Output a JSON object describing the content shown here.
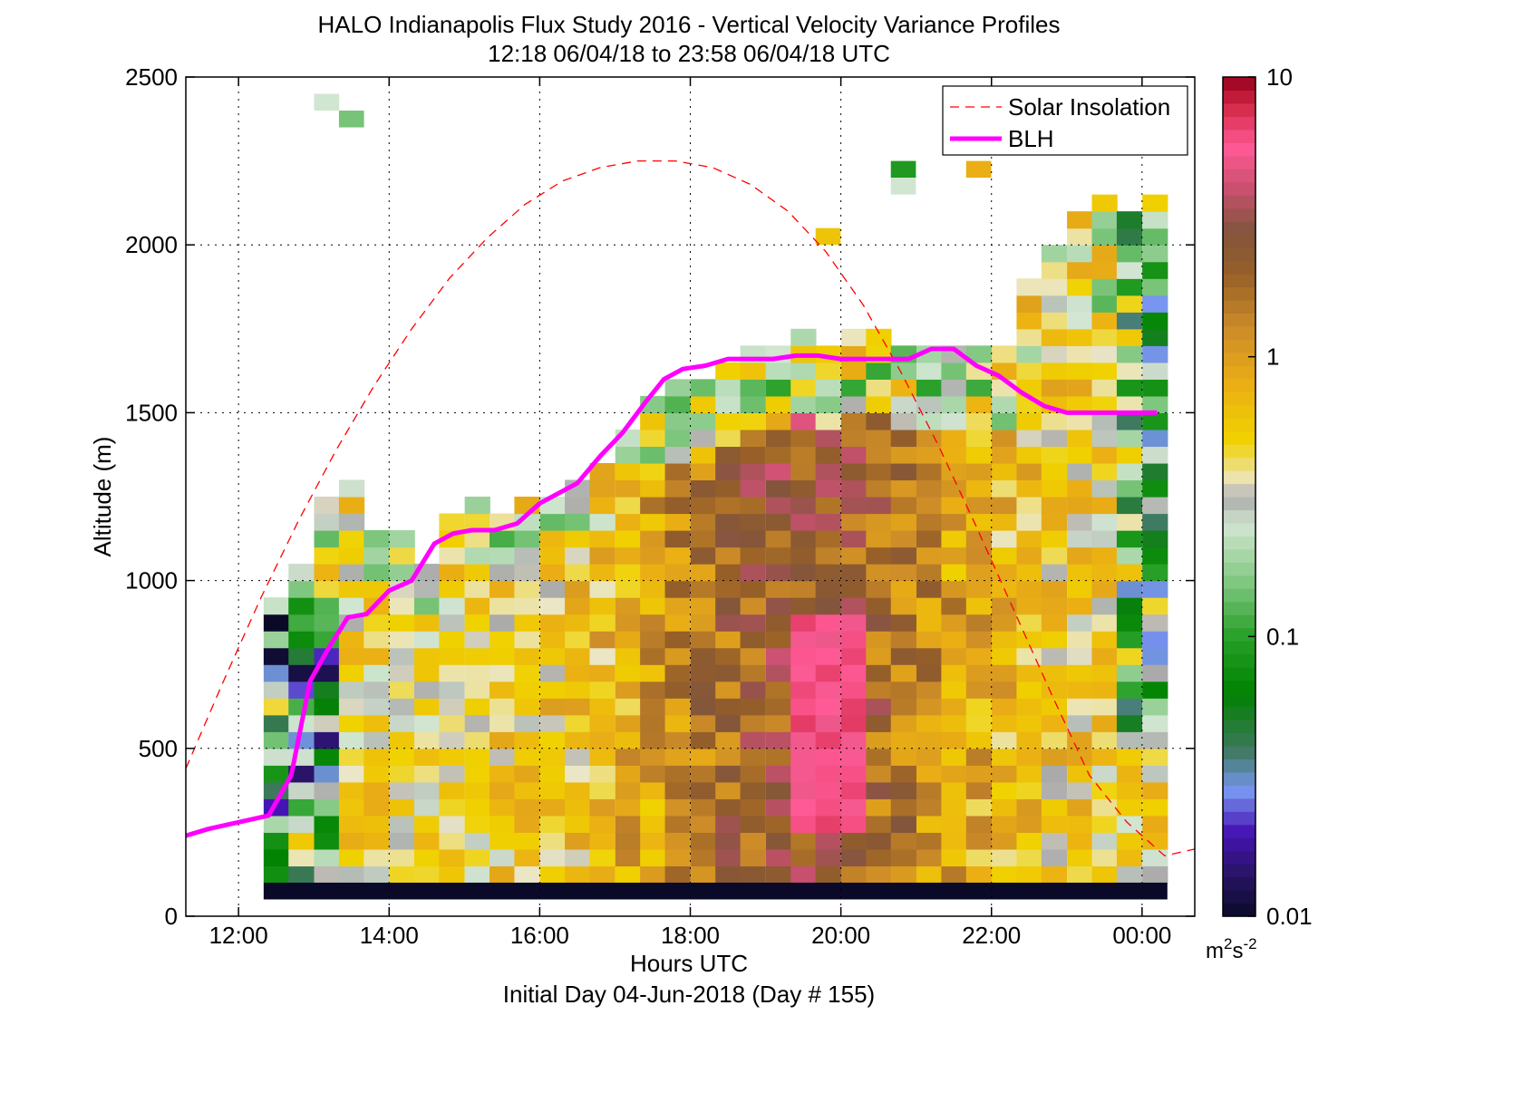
{
  "chart_data": {
    "type": "heatmap",
    "title": "HALO Indianapolis Flux Study 2016 - Vertical Velocity Variance Profiles",
    "subtitle": "12:18 06/04/18 to 23:58 06/04/18  UTC",
    "xlabel": "Hours UTC",
    "ylabel": "Altitude (m)",
    "footer": "Initial Day 04-Jun-2018 (Day # 155)",
    "xlim_hours": [
      11.3,
      24.7
    ],
    "ylim": [
      0,
      2500
    ],
    "x_ticks": [
      {
        "value": 12,
        "label": "12:00"
      },
      {
        "value": 14,
        "label": "14:00"
      },
      {
        "value": 16,
        "label": "16:00"
      },
      {
        "value": 18,
        "label": "18:00"
      },
      {
        "value": 20,
        "label": "20:00"
      },
      {
        "value": 22,
        "label": "22:00"
      },
      {
        "value": 24,
        "label": "00:00"
      }
    ],
    "y_ticks": [
      0,
      500,
      1000,
      1500,
      2000,
      2500
    ],
    "grid": true,
    "legend": {
      "placement": "top-right",
      "entries": [
        {
          "label": "Solar Insolation",
          "style": "dashed",
          "color": "#ff0000"
        },
        {
          "label": "BLH",
          "style": "solid",
          "color": "#ff00ff"
        }
      ]
    },
    "colorbar": {
      "scale": "log",
      "range": [
        0.01,
        10
      ],
      "ticks": [
        {
          "value": 0.01,
          "label": "0.01"
        },
        {
          "value": 0.1,
          "label": "0.1"
        },
        {
          "value": 1,
          "label": "1"
        },
        {
          "value": 10,
          "label": "10"
        }
      ],
      "units_base": "m",
      "units_exp1": "2",
      "units_mid": "s",
      "units_exp2": "-2"
    },
    "heatmap": {
      "cell_width_hours": 0.333,
      "cell_height_m": 50,
      "rows": [
        {
          "t": 12.5,
          "z0": 100,
          "z1": 950
        },
        {
          "t": 12.83,
          "z0": 100,
          "z1": 1050
        },
        {
          "t": 13.17,
          "z0": 100,
          "z1": 1250
        },
        {
          "t": 13.5,
          "z0": 100,
          "z1": 1300
        },
        {
          "t": 13.83,
          "z0": 100,
          "z1": 1150
        },
        {
          "t": 14.17,
          "z0": 100,
          "z1": 1150
        },
        {
          "t": 14.5,
          "z0": 100,
          "z1": 1050
        },
        {
          "t": 14.83,
          "z0": 100,
          "z1": 1200
        },
        {
          "t": 15.17,
          "z0": 100,
          "z1": 1250
        },
        {
          "t": 15.5,
          "z0": 100,
          "z1": 1200
        },
        {
          "t": 15.83,
          "z0": 100,
          "z1": 1250
        },
        {
          "t": 16.17,
          "z0": 100,
          "z1": 1250
        },
        {
          "t": 16.5,
          "z0": 100,
          "z1": 1300
        },
        {
          "t": 16.83,
          "z0": 100,
          "z1": 1350
        },
        {
          "t": 17.17,
          "z0": 100,
          "z1": 1450
        },
        {
          "t": 17.5,
          "z0": 100,
          "z1": 1550
        },
        {
          "t": 17.83,
          "z0": 100,
          "z1": 1600
        },
        {
          "t": 18.17,
          "z0": 100,
          "z1": 1600
        },
        {
          "t": 18.5,
          "z0": 100,
          "z1": 1650
        },
        {
          "t": 18.83,
          "z0": 100,
          "z1": 1700
        },
        {
          "t": 19.17,
          "z0": 100,
          "z1": 1700
        },
        {
          "t": 19.5,
          "z0": 100,
          "z1": 1750
        },
        {
          "t": 19.83,
          "z0": 100,
          "z1": 1700
        },
        {
          "t": 20.17,
          "z0": 100,
          "z1": 1750
        },
        {
          "t": 20.5,
          "z0": 100,
          "z1": 1750
        },
        {
          "t": 20.83,
          "z0": 100,
          "z1": 1700
        },
        {
          "t": 21.17,
          "z0": 100,
          "z1": 1700
        },
        {
          "t": 21.5,
          "z0": 100,
          "z1": 1700
        },
        {
          "t": 21.83,
          "z0": 100,
          "z1": 1700
        },
        {
          "t": 22.17,
          "z0": 100,
          "z1": 1700
        },
        {
          "t": 22.5,
          "z0": 100,
          "z1": 1900
        },
        {
          "t": 22.83,
          "z0": 100,
          "z1": 2000
        },
        {
          "t": 23.17,
          "z0": 100,
          "z1": 2100
        },
        {
          "t": 23.5,
          "z0": 100,
          "z1": 2150
        },
        {
          "t": 23.83,
          "z0": 100,
          "z1": 2100
        },
        {
          "t": 24.17,
          "z0": 100,
          "z1": 2150
        }
      ],
      "isolated_cells": [
        {
          "t": 13.17,
          "z": 2400,
          "v": 0.25
        },
        {
          "t": 13.5,
          "z": 2350,
          "v": 0.15
        },
        {
          "t": 20.83,
          "z": 2200,
          "v": 0.09
        },
        {
          "t": 20.83,
          "z": 2150,
          "v": 0.25
        },
        {
          "t": 21.83,
          "z": 2200,
          "v": 0.8
        },
        {
          "t": 19.83,
          "z": 2000,
          "v": 0.6
        }
      ],
      "bottom_band": {
        "z0": 50,
        "z1": 100,
        "v": 0.01
      }
    },
    "series": [
      {
        "name": "BLH",
        "x": [
          11.3,
          11.6,
          12.0,
          12.4,
          12.7,
          12.95,
          13.2,
          13.45,
          13.7,
          14.0,
          14.3,
          14.6,
          14.85,
          15.1,
          15.4,
          15.7,
          16.0,
          16.25,
          16.5,
          16.8,
          17.1,
          17.4,
          17.65,
          17.9,
          18.2,
          18.5,
          18.8,
          19.1,
          19.4,
          19.7,
          20.0,
          20.3,
          20.6,
          20.9,
          21.2,
          21.5,
          21.8,
          22.1,
          22.4,
          22.7,
          23.0,
          23.3,
          23.6,
          23.9,
          24.2
        ],
        "y": [
          240,
          260,
          280,
          300,
          420,
          700,
          800,
          890,
          900,
          970,
          1000,
          1110,
          1140,
          1150,
          1150,
          1170,
          1230,
          1260,
          1290,
          1370,
          1440,
          1530,
          1600,
          1630,
          1640,
          1660,
          1660,
          1660,
          1670,
          1670,
          1660,
          1660,
          1660,
          1660,
          1690,
          1690,
          1640,
          1610,
          1560,
          1520,
          1500,
          1500,
          1500,
          1500,
          1500
        ]
      },
      {
        "name": "Solar Insolation",
        "x": [
          11.3,
          11.8,
          12.3,
          12.8,
          13.3,
          13.8,
          14.3,
          14.8,
          15.3,
          15.8,
          16.3,
          16.8,
          17.3,
          17.8,
          18.3,
          18.8,
          19.3,
          19.8,
          20.3,
          20.8,
          21.3,
          21.8,
          22.3,
          22.8,
          23.3,
          23.8,
          24.3,
          24.7
        ],
        "y": [
          440,
          700,
          950,
          1180,
          1390,
          1580,
          1750,
          1900,
          2020,
          2120,
          2190,
          2230,
          2250,
          2250,
          2230,
          2180,
          2100,
          1980,
          1820,
          1620,
          1400,
          1160,
          910,
          660,
          420,
          280,
          180,
          200
        ]
      }
    ]
  }
}
